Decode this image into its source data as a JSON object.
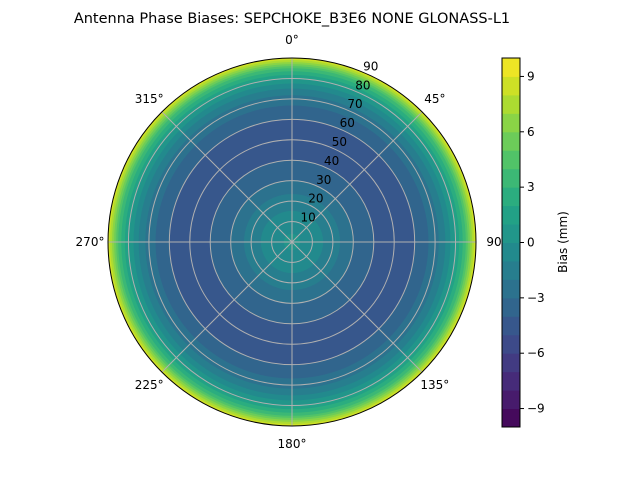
{
  "chart_data": {
    "type": "polar-contour",
    "title": "Antenna Phase Biases: SEPCHOKE_B3E6   NONE GLONASS-L1",
    "theta_direction": "clockwise",
    "theta_zero": "top",
    "theta_ticks": [
      "0°",
      "45°",
      "90",
      "135°",
      "180°",
      "225°",
      "270°",
      "315°"
    ],
    "theta_tick_angles": [
      0,
      45,
      90,
      135,
      180,
      225,
      270,
      315
    ],
    "r_ticks": [
      10,
      20,
      30,
      40,
      50,
      60,
      70,
      80,
      90
    ],
    "r_tick_labels": [
      "10",
      "20",
      "30",
      "40",
      "50",
      "60",
      "70",
      "80",
      "90"
    ],
    "rlim": [
      0,
      90
    ],
    "grid": true,
    "radial_profile": {
      "zenith_deg": [
        0,
        10,
        20,
        30,
        40,
        50,
        60,
        70,
        75,
        80,
        85,
        88,
        90
      ],
      "bias_mm": [
        0.3,
        -0.5,
        -1.5,
        -3,
        -4,
        -4.5,
        -4,
        -2.5,
        -1,
        1,
        4,
        7,
        9.5
      ]
    },
    "colorbar": {
      "label": "Bias (mm)",
      "range": [
        -10,
        10
      ],
      "levels_step": 1,
      "ticks": [
        -9,
        -6,
        -3,
        0,
        3,
        6,
        9
      ],
      "tick_labels": [
        "−9",
        "−6",
        "−3",
        "0",
        "3",
        "6",
        "9"
      ],
      "colormap": "viridis",
      "placement": "right"
    }
  }
}
